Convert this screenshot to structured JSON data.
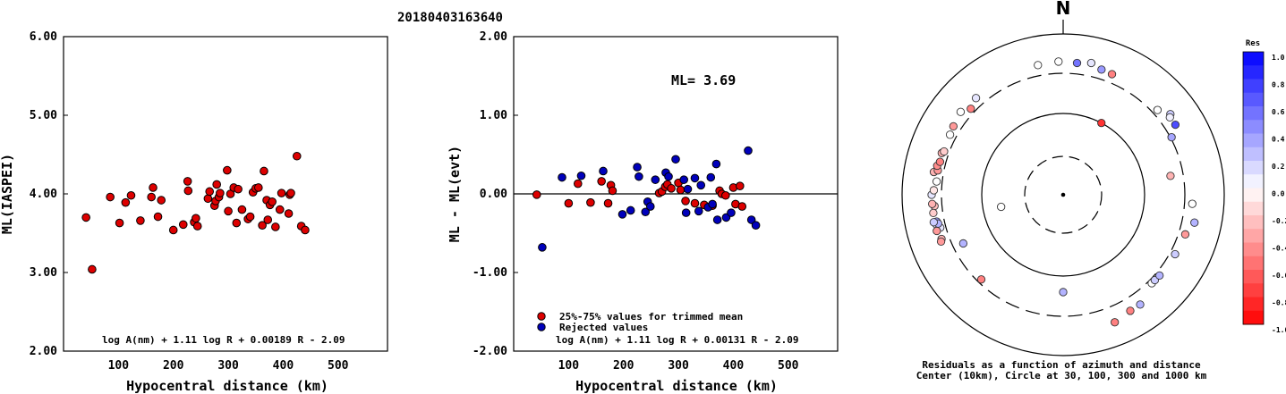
{
  "title": "20180403163640",
  "colors": {
    "used": "#dd0000",
    "rejected": "#0000bb",
    "frame": "#000000"
  },
  "chart_data": [
    {
      "type": "scatter",
      "ylabel": "ML(IASPEI)",
      "xlabel": "Hypocentral distance (km)",
      "xlim": [
        0,
        590
      ],
      "ylim": [
        2.0,
        6.0
      ],
      "xticks": [
        "100",
        "200",
        "300",
        "400",
        "500"
      ],
      "yticks": [
        "2.00",
        "3.00",
        "4.00",
        "5.00",
        "6.00"
      ],
      "formula": "log A(nm) + 1.11 log R + 0.00189 R - 2.09",
      "series": [
        {
          "points": [
            [
              41,
              3.7
            ],
            [
              52,
              3.04
            ],
            [
              85,
              3.96
            ],
            [
              102,
              3.63
            ],
            [
              113,
              3.89
            ],
            [
              123,
              3.98
            ],
            [
              140,
              3.66
            ],
            [
              160,
              3.96
            ],
            [
              163,
              4.08
            ],
            [
              172,
              3.71
            ],
            [
              178,
              3.92
            ],
            [
              200,
              3.54
            ],
            [
              218,
              3.61
            ],
            [
              226,
              4.16
            ],
            [
              227,
              4.04
            ],
            [
              238,
              3.64
            ],
            [
              241,
              3.69
            ],
            [
              244,
              3.59
            ],
            [
              263,
              3.94
            ],
            [
              266,
              4.03
            ],
            [
              275,
              3.85
            ],
            [
              277,
              3.91
            ],
            [
              279,
              4.12
            ],
            [
              283,
              3.96
            ],
            [
              285,
              4.01
            ],
            [
              298,
              4.3
            ],
            [
              300,
              3.78
            ],
            [
              304,
              4.0
            ],
            [
              310,
              4.08
            ],
            [
              315,
              3.63
            ],
            [
              318,
              4.06
            ],
            [
              325,
              3.8
            ],
            [
              336,
              3.68
            ],
            [
              340,
              3.71
            ],
            [
              345,
              4.02
            ],
            [
              350,
              4.07
            ],
            [
              355,
              4.08
            ],
            [
              362,
              3.6
            ],
            [
              365,
              4.29
            ],
            [
              370,
              3.92
            ],
            [
              372,
              3.67
            ],
            [
              376,
              3.86
            ],
            [
              380,
              3.9
            ],
            [
              386,
              3.58
            ],
            [
              394,
              3.8
            ],
            [
              397,
              4.01
            ],
            [
              410,
              3.75
            ],
            [
              412,
              3.99
            ],
            [
              414,
              4.01
            ],
            [
              425,
              4.48
            ],
            [
              433,
              3.59
            ],
            [
              440,
              3.54
            ]
          ]
        }
      ]
    },
    {
      "type": "scatter",
      "ylabel": "ML - ML(evt)",
      "xlabel": "Hypocentral distance (km)",
      "xlim": [
        0,
        590
      ],
      "ylim": [
        -2.0,
        2.0
      ],
      "xticks": [
        "100",
        "200",
        "300",
        "400",
        "500"
      ],
      "yticks": [
        "-2.00",
        "-1.00",
        "0.00",
        "1.00",
        "2.00"
      ],
      "annotation": "ML= 3.69",
      "formula": "log A(nm) + 1.11 log R + 0.00131 R - 2.09",
      "legend": [
        "25%-75% values for trimmed mean",
        "Rejected values"
      ],
      "series": [
        {
          "points": [
            [
              42,
              -0.01
            ],
            [
              100,
              -0.12
            ],
            [
              117,
              0.13
            ],
            [
              140,
              -0.11
            ],
            [
              160,
              0.16
            ],
            [
              172,
              -0.12
            ],
            [
              177,
              0.11
            ],
            [
              180,
              0.04
            ],
            [
              265,
              0.01
            ],
            [
              270,
              0.03
            ],
            [
              276,
              0.09
            ],
            [
              280,
              0.12
            ],
            [
              287,
              0.07
            ],
            [
              300,
              0.14
            ],
            [
              304,
              0.05
            ],
            [
              313,
              -0.09
            ],
            [
              330,
              -0.12
            ],
            [
              347,
              -0.14
            ],
            [
              362,
              -0.15
            ],
            [
              375,
              0.04
            ],
            [
              379,
              0.0
            ],
            [
              386,
              -0.02
            ],
            [
              400,
              0.08
            ],
            [
              404,
              -0.13
            ],
            [
              412,
              0.1
            ],
            [
              416,
              -0.16
            ]
          ]
        },
        {
          "points": [
            [
              52,
              -0.68
            ],
            [
              88,
              0.21
            ],
            [
              123,
              0.23
            ],
            [
              163,
              0.29
            ],
            [
              198,
              -0.26
            ],
            [
              213,
              -0.21
            ],
            [
              225,
              0.34
            ],
            [
              228,
              0.22
            ],
            [
              240,
              -0.23
            ],
            [
              244,
              -0.1
            ],
            [
              249,
              -0.16
            ],
            [
              258,
              0.18
            ],
            [
              277,
              0.27
            ],
            [
              282,
              0.22
            ],
            [
              295,
              0.44
            ],
            [
              310,
              0.18
            ],
            [
              314,
              -0.24
            ],
            [
              317,
              0.06
            ],
            [
              330,
              0.2
            ],
            [
              337,
              -0.22
            ],
            [
              341,
              0.11
            ],
            [
              354,
              -0.17
            ],
            [
              359,
              0.21
            ],
            [
              362,
              -0.13
            ],
            [
              369,
              0.38
            ],
            [
              371,
              -0.33
            ],
            [
              387,
              -0.3
            ],
            [
              396,
              -0.24
            ],
            [
              427,
              0.55
            ],
            [
              433,
              -0.33
            ],
            [
              441,
              -0.4
            ]
          ]
        }
      ]
    },
    {
      "type": "polar-scatter",
      "north_label": "N",
      "caption_line1": "Residuals as a function of azimuth and distance",
      "caption_line2": "Center (10km), Circle at 30, 100, 300 and 1000 km",
      "colorbar_title": "Res",
      "colorbar_ticks": [
        "1.0",
        "0.8",
        "0.6",
        "0.4",
        "0.2",
        "0.0",
        "-0.2",
        "-0.4",
        "-0.6",
        "-0.8",
        "-1.0"
      ],
      "colorbar_range": [
        -1.0,
        1.0
      ],
      "rings_km": [
        30,
        100,
        300,
        1000
      ],
      "points": [
        {
          "az": 349,
          "km": 415,
          "res": 0.0
        },
        {
          "az": 358,
          "km": 430,
          "res": 0.0
        },
        {
          "az": 6,
          "km": 420,
          "res": 0.55
        },
        {
          "az": 12,
          "km": 450,
          "res": 0.1
        },
        {
          "az": 17,
          "km": 400,
          "res": 0.4
        },
        {
          "az": 22,
          "km": 390,
          "res": -0.5
        },
        {
          "az": 48,
          "km": 352,
          "res": 0.0
        },
        {
          "az": 53,
          "km": 440,
          "res": 0.2
        },
        {
          "az": 54,
          "km": 410,
          "res": 0.05
        },
        {
          "az": 58,
          "km": 415,
          "res": 0.7
        },
        {
          "az": 298,
          "km": 365,
          "res": 0.0
        },
        {
          "az": 302,
          "km": 380,
          "res": -0.4
        },
        {
          "az": 309,
          "km": 410,
          "res": 0.0
        },
        {
          "az": 313,
          "km": 345,
          "res": -0.5
        },
        {
          "az": 318,
          "km": 390,
          "res": 0.1
        },
        {
          "az": 270,
          "km": 405,
          "res": 0.1
        },
        {
          "az": 272,
          "km": 380,
          "res": -0.1
        },
        {
          "az": 276,
          "km": 355,
          "res": 0.0
        },
        {
          "az": 280,
          "km": 402,
          "res": -0.3
        },
        {
          "az": 281,
          "km": 360,
          "res": -0.4
        },
        {
          "az": 283,
          "km": 378,
          "res": -0.45
        },
        {
          "az": 285,
          "km": 358,
          "res": -0.5
        },
        {
          "az": 289,
          "km": 368,
          "res": -0.3
        },
        {
          "az": 290,
          "km": 350,
          "res": -0.2
        },
        {
          "az": 265,
          "km": 377,
          "res": -0.25
        },
        {
          "az": 266,
          "km": 402,
          "res": -0.3
        },
        {
          "az": 262,
          "km": 400,
          "res": -0.2
        },
        {
          "az": 258,
          "km": 378,
          "res": 0.4
        },
        {
          "az": 257,
          "km": 392,
          "res": 0.1
        },
        {
          "az": 255,
          "km": 355,
          "res": 0.1
        },
        {
          "az": 254,
          "km": 404,
          "res": -0.4
        },
        {
          "az": 257,
          "km": 367,
          "res": 0.3
        },
        {
          "az": 250,
          "km": 380,
          "res": -0.3
        },
        {
          "az": 249,
          "km": 396,
          "res": -0.4
        },
        {
          "az": 258,
          "km": 415,
          "res": 0.2
        },
        {
          "az": 244,
          "km": 225,
          "res": 0.3
        },
        {
          "az": 224,
          "km": 270,
          "res": -0.5
        },
        {
          "az": 180,
          "km": 155,
          "res": 0.3
        },
        {
          "az": 145,
          "km": 440,
          "res": 0.3
        },
        {
          "az": 150,
          "km": 440,
          "res": -0.5
        },
        {
          "az": 158,
          "km": 490,
          "res": -0.5
        },
        {
          "az": 135,
          "km": 335,
          "res": 0.0
        },
        {
          "az": 133,
          "km": 335,
          "res": 0.2
        },
        {
          "az": 130,
          "km": 340,
          "res": 0.3
        },
        {
          "az": 118,
          "km": 350,
          "res": 0.2
        },
        {
          "az": 108,
          "km": 368,
          "res": -0.4
        },
        {
          "az": 102,
          "km": 440,
          "res": 0.3
        },
        {
          "az": 94,
          "km": 380,
          "res": 0.0
        },
        {
          "az": 80,
          "km": 212,
          "res": -0.3
        },
        {
          "az": 62,
          "km": 310,
          "res": 0.35
        },
        {
          "az": 28,
          "km": 100,
          "res": -0.8
        },
        {
          "az": 259,
          "km": 60,
          "res": 0.0
        }
      ]
    }
  ]
}
